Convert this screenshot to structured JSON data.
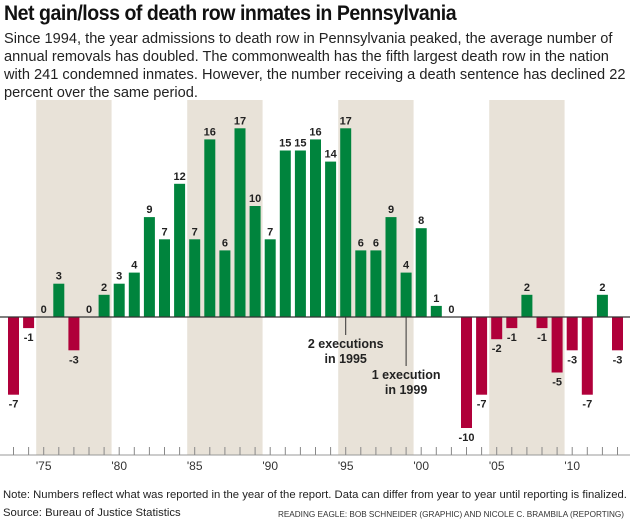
{
  "chart_data": {
    "type": "bar",
    "title": "Net gain/loss of death row inmates in Pennsylvania",
    "subtitle": "Since 1994, the year admissions to death row in Pennsylvania peaked, the average number of annual removals has doubled. The commonwealth has the fifth largest death row in the nation with 241 condemned inmates. However, the number receiving a death sentence has declined 22 percent over the same period.",
    "x": [
      1973,
      1974,
      1975,
      1976,
      1977,
      1978,
      1979,
      1980,
      1981,
      1982,
      1983,
      1984,
      1985,
      1986,
      1987,
      1988,
      1989,
      1990,
      1991,
      1992,
      1993,
      1994,
      1995,
      1996,
      1997,
      1998,
      1999,
      2000,
      2001,
      2002,
      2003,
      2004,
      2005,
      2006,
      2007,
      2008,
      2009,
      2010,
      2011,
      2012,
      2013
    ],
    "values": [
      -7,
      -1,
      0,
      3,
      -3,
      0,
      2,
      3,
      4,
      9,
      7,
      12,
      7,
      16,
      6,
      17,
      10,
      7,
      15,
      15,
      16,
      14,
      17,
      6,
      6,
      9,
      4,
      8,
      1,
      0,
      -10,
      -7,
      -2,
      -1,
      2,
      -1,
      -5,
      -3,
      -7,
      2,
      -3
    ],
    "tick_labels": [
      {
        "year": 1975,
        "label": "'75"
      },
      {
        "year": 1980,
        "label": "'80"
      },
      {
        "year": 1985,
        "label": "'85"
      },
      {
        "year": 1990,
        "label": "'90"
      },
      {
        "year": 1995,
        "label": "'95"
      },
      {
        "year": 2000,
        "label": "'00"
      },
      {
        "year": 2005,
        "label": "'05"
      },
      {
        "year": 2010,
        "label": "'10"
      }
    ],
    "shaded_bands": [
      [
        1975,
        1979
      ],
      [
        1985,
        1989
      ],
      [
        1995,
        1999
      ],
      [
        2005,
        2009
      ]
    ],
    "annotations": [
      {
        "year": 1995,
        "lines": [
          "2 executions",
          "in 1995"
        ]
      },
      {
        "year": 1999,
        "lines": [
          "1 execution",
          "in 1999"
        ]
      }
    ],
    "ylim": [
      -11,
      18
    ],
    "grid": false,
    "colors": {
      "positive": "#00843d",
      "negative": "#b0003a",
      "band": "#e8e2d8"
    }
  },
  "note": "Note: Numbers reflect what was reported in the year of the report. Data can differ from year to year until reporting is finalized.",
  "source": "Source: Bureau of Justice Statistics",
  "credit": "READING EAGLE: BOB SCHNEIDER (GRAPHIC) AND NICOLE C. BRAMBILA (REPORTING)"
}
